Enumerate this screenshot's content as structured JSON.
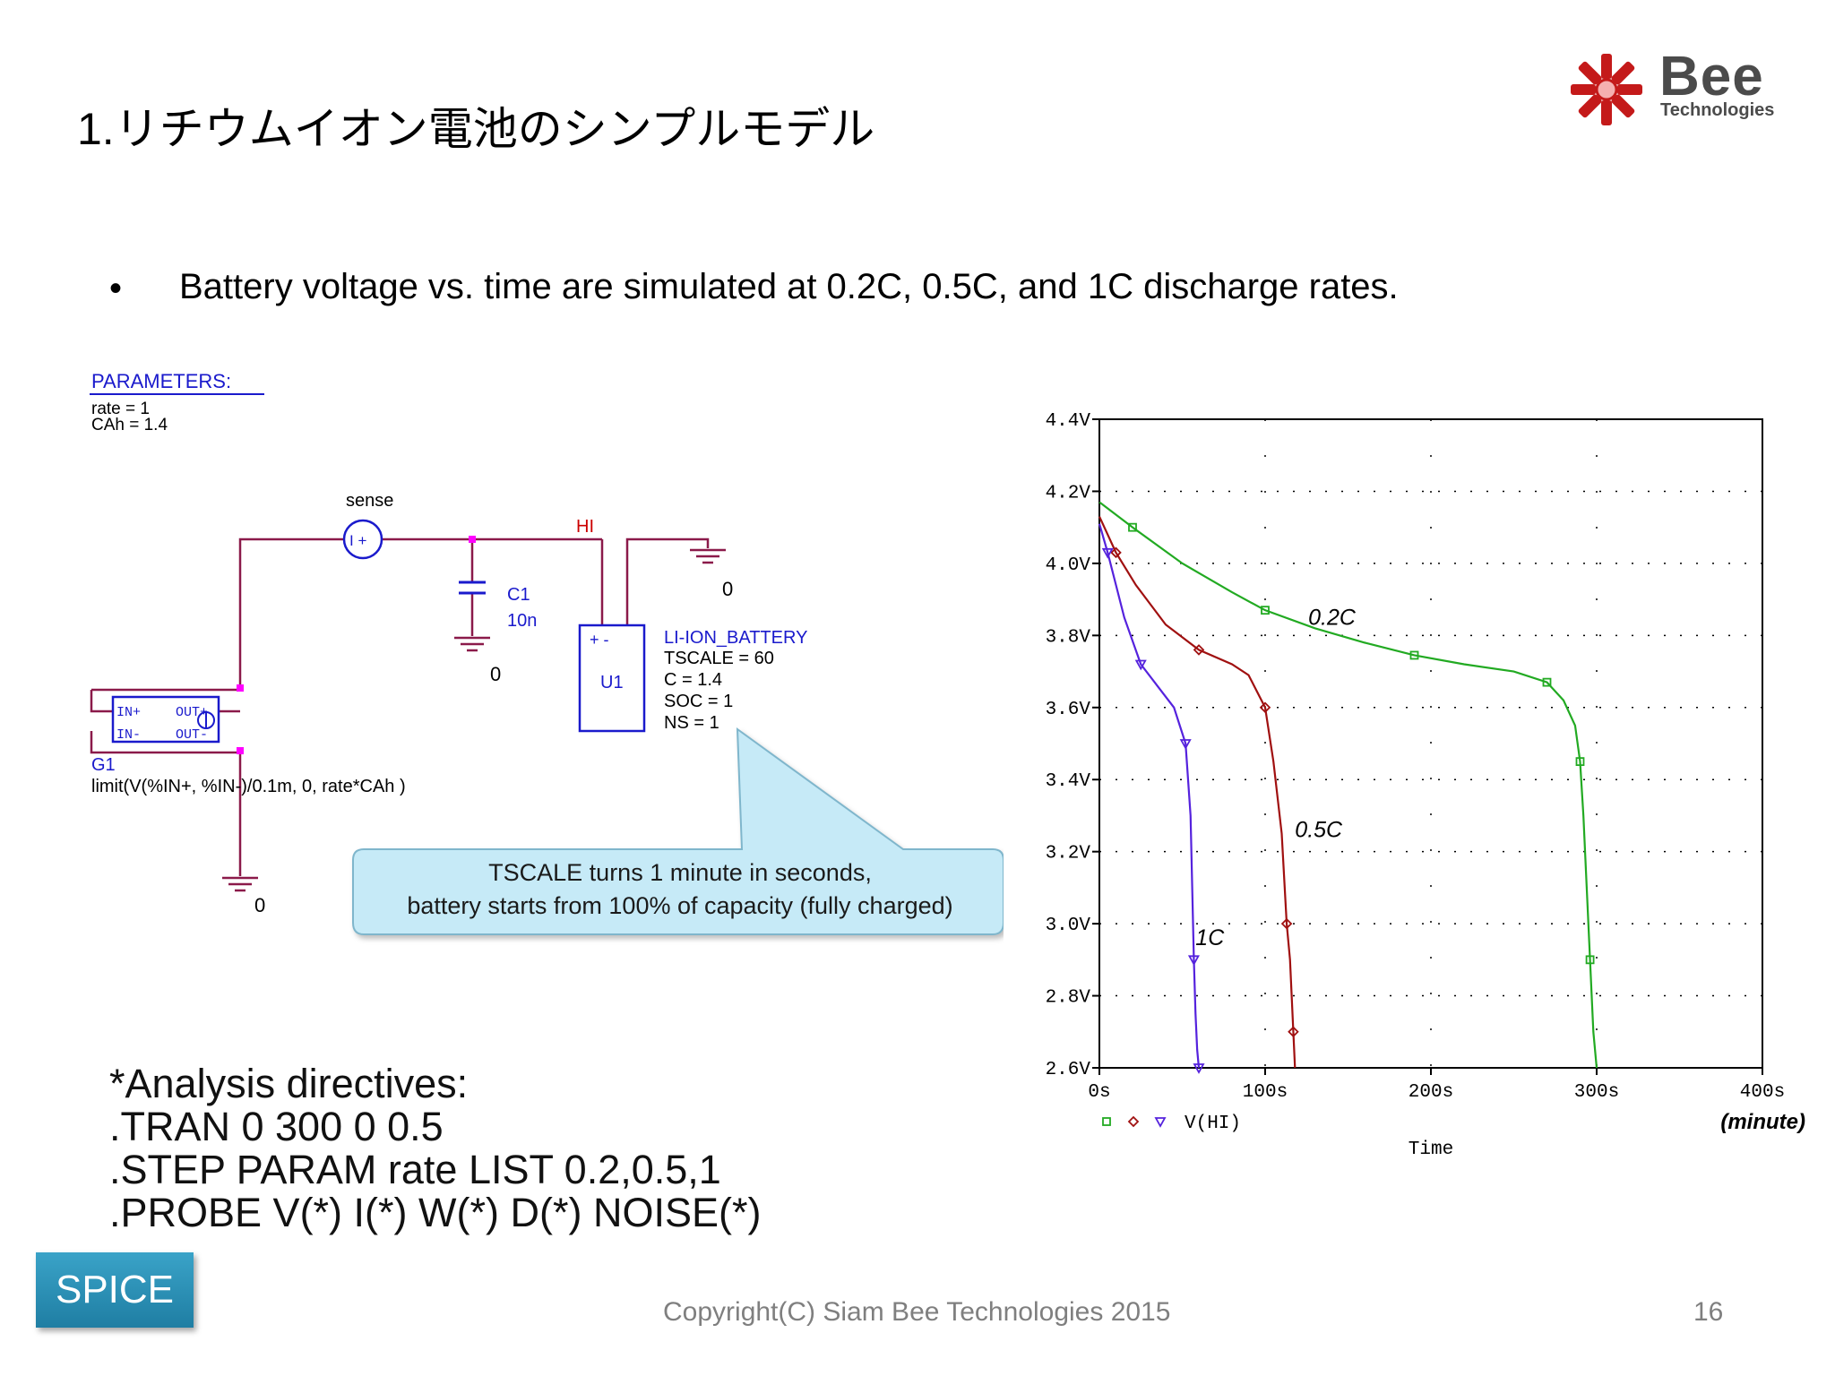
{
  "slide": {
    "title": "1.リチウムイオン電池のシンプルモデル",
    "bullet_marker": "•",
    "bullet_text": "Battery voltage vs. time are simulated at 0.2C, 0.5C, and 1C discharge rates."
  },
  "logo": {
    "wordmark": "Bee",
    "subtitle": "Technologies"
  },
  "schematic": {
    "parameters_title": "PARAMETERS:",
    "param_rate": "rate = 1",
    "param_cah": "CAh = 1.4",
    "sense_label": "sense",
    "sense_symbol": "I  +",
    "hi_label": "HI",
    "ground_0": "0",
    "c1_name": "C1",
    "c1_value": "10n",
    "u1_name": "U1",
    "u1_pins": "+   -",
    "battery_name": "LI-ION_BATTERY",
    "battery_tscale": "TSCALE = 60",
    "battery_c": "C = 1.4",
    "battery_soc": "SOC = 1",
    "battery_ns": "NS = 1",
    "g1_in_plus": "IN+",
    "g1_in_minus": "IN-",
    "g1_out_plus": "OUT+",
    "g1_out_minus": "OUT-",
    "g1_name": "G1",
    "g1_expr": "limit(V(%IN+, %IN-)/0.1m, 0, rate*CAh )"
  },
  "callout": {
    "line1": "TSCALE turns 1 minute in seconds,",
    "line2": "battery starts from 100% of capacity (fully charged)"
  },
  "directives": [
    "*Analysis directives:",
    ".TRAN  0 300 0 0.5",
    ".STEP PARAM rate LIST 0.2,0.5,1",
    ".PROBE V(*) I(*) W(*) D(*) NOISE(*)"
  ],
  "footer": {
    "button": "SPICE",
    "copyright": "Copyright(C) Siam Bee Technologies 2015",
    "page": "16"
  },
  "colors": {
    "wire": "#8b1a4a",
    "component": "#1a1acc",
    "node_dot": "#ff00ff",
    "hi_label": "#cc0000",
    "callout_fill": "#c6eaf7",
    "series_02c": "#22aa22",
    "series_05c": "#a01010",
    "series_1c": "#5522dd"
  },
  "chart_data": {
    "type": "line",
    "xlabel": "Time",
    "x_unit_note": "(minute)",
    "xlim": [
      0,
      400
    ],
    "ylim": [
      2.6,
      4.4
    ],
    "x_ticks": [
      "0s",
      "100s",
      "200s",
      "300s",
      "400s"
    ],
    "y_ticks": [
      "2.6V",
      "2.8V",
      "3.0V",
      "3.2V",
      "3.4V",
      "3.6V",
      "3.8V",
      "4.0V",
      "4.2V",
      "4.4V"
    ],
    "grid": "dotted",
    "legend": "V(HI)",
    "series": [
      {
        "name": "0.2C",
        "marker": "square",
        "color": "#22aa22",
        "x": [
          0,
          20,
          50,
          80,
          100,
          130,
          160,
          190,
          220,
          250,
          270,
          280,
          287,
          290,
          292,
          294,
          296,
          298,
          300
        ],
        "y": [
          4.17,
          4.1,
          4.0,
          3.92,
          3.87,
          3.82,
          3.78,
          3.745,
          3.72,
          3.7,
          3.67,
          3.62,
          3.55,
          3.45,
          3.3,
          3.1,
          2.9,
          2.7,
          2.6
        ]
      },
      {
        "name": "0.5C",
        "marker": "diamond",
        "color": "#a01010",
        "x": [
          0,
          10,
          22,
          40,
          60,
          80,
          90,
          100,
          105,
          110,
          113,
          115,
          116,
          117,
          118
        ],
        "y": [
          4.13,
          4.03,
          3.94,
          3.83,
          3.76,
          3.72,
          3.69,
          3.6,
          3.45,
          3.25,
          3.0,
          2.9,
          2.8,
          2.7,
          2.6
        ]
      },
      {
        "name": "1C",
        "marker": "triangle",
        "color": "#5522dd",
        "x": [
          0,
          5,
          10,
          15,
          25,
          35,
          45,
          52,
          55,
          56,
          57,
          58,
          59,
          60
        ],
        "y": [
          4.11,
          4.03,
          3.94,
          3.85,
          3.72,
          3.66,
          3.6,
          3.5,
          3.3,
          3.1,
          2.9,
          2.75,
          2.65,
          2.6
        ]
      }
    ],
    "annotations": [
      "0.2C",
      "0.5C",
      "1C"
    ]
  }
}
